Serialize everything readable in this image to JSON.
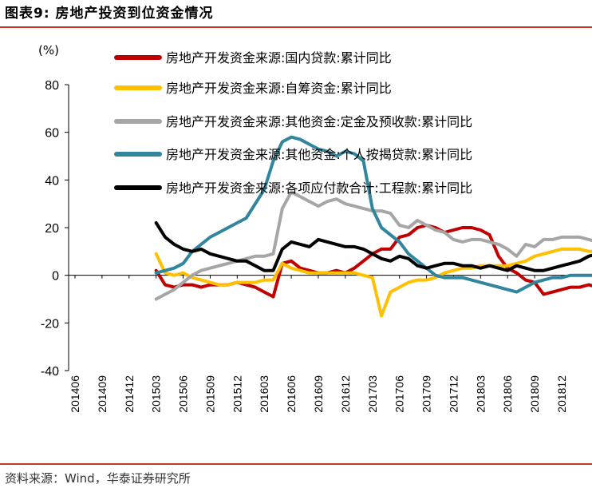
{
  "figure": {
    "title": "图表9:  房地产投资到位资金情况",
    "source": "资料来源：Wind，华泰证券研究所"
  },
  "colors": {
    "accent_rule": "#c0392b",
    "series": [
      "#c00000",
      "#ffc000",
      "#a6a6a6",
      "#31859c",
      "#000000"
    ]
  },
  "chart_data": {
    "type": "line",
    "unit_label": "(%)",
    "ylim": [
      -40,
      80
    ],
    "yticks": [
      -40,
      -20,
      0,
      20,
      40,
      60,
      80
    ],
    "x_tick_labels": [
      "201406",
      "201409",
      "201412",
      "201503",
      "201506",
      "201509",
      "201512",
      "201603",
      "201606",
      "201609",
      "201612",
      "201703",
      "201706",
      "201709",
      "201712",
      "201803",
      "201806",
      "201809",
      "201812"
    ],
    "x_start": "201406",
    "x_end": "201812",
    "series": [
      {
        "name": "房地产开发资金来源:国内贷款:累计同比",
        "start_index": 9,
        "values": [
          2,
          -4,
          -5,
          -4,
          -4,
          -5,
          -4,
          -4,
          -4,
          -3,
          -4,
          -5,
          -7,
          -9,
          5,
          6,
          3,
          2,
          1,
          1,
          2,
          1,
          3,
          6,
          9,
          11,
          11,
          16,
          17,
          20,
          21,
          20,
          18,
          19,
          20,
          20,
          19,
          17,
          8,
          3,
          1,
          -2,
          -3,
          -8,
          -7,
          -6,
          -5,
          -5,
          -4,
          -5
        ]
      },
      {
        "name": "房地产开发资金来源:自筹资金:累计同比",
        "start_index": 9,
        "values": [
          9,
          1,
          0,
          1,
          -1,
          -2,
          -3,
          -4,
          -4,
          -3,
          -3,
          -3,
          -2,
          -2,
          5,
          3,
          2,
          1,
          1,
          1,
          1,
          1,
          1,
          0,
          -1,
          -17,
          -7,
          -5,
          -3,
          -2,
          -2,
          -1,
          1,
          2,
          3,
          3,
          4,
          4,
          4,
          4,
          5,
          6,
          8,
          9,
          10,
          11,
          11,
          11,
          10,
          10
        ]
      },
      {
        "name": "房地产开发资金来源:其他资金:定金及预收款:累计同比",
        "start_index": 9,
        "values": [
          -10,
          -8,
          -6,
          -3,
          0,
          2,
          3,
          4,
          5,
          6,
          7,
          8,
          8,
          9,
          28,
          35,
          33,
          31,
          29,
          31,
          32,
          30,
          29,
          28,
          27,
          27,
          26,
          21,
          20,
          23,
          21,
          19,
          18,
          15,
          14,
          15,
          15,
          14,
          13,
          11,
          8,
          13,
          12,
          15,
          15,
          16,
          16,
          16,
          15,
          14
        ]
      },
      {
        "name": "房地产开发资金来源:其他资金:个人按揭贷款:累计同比",
        "start_index": 9,
        "values": [
          1,
          2,
          3,
          5,
          10,
          13,
          16,
          18,
          20,
          22,
          24,
          30,
          36,
          48,
          56,
          58,
          57,
          55,
          53,
          52,
          50,
          52,
          51,
          48,
          28,
          20,
          17,
          14,
          9,
          6,
          3,
          0,
          -1,
          -1,
          -1,
          -2,
          -3,
          -4,
          -5,
          -6,
          -7,
          -5,
          -3,
          -2,
          -1,
          -1,
          0,
          0,
          0,
          0
        ]
      },
      {
        "name": "房地产开发资金来源:各项应付款合计:工程款:累计同比",
        "start_index": 9,
        "values": [
          22,
          16,
          13,
          11,
          10,
          11,
          9,
          8,
          7,
          6,
          6,
          4,
          2,
          2,
          11,
          14,
          13,
          12,
          15,
          14,
          13,
          12,
          12,
          11,
          9,
          7,
          6,
          8,
          7,
          4,
          3,
          4,
          5,
          5,
          4,
          4,
          3,
          4,
          3,
          2,
          4,
          3,
          2,
          2,
          3,
          4,
          5,
          6,
          8,
          9
        ]
      }
    ]
  }
}
